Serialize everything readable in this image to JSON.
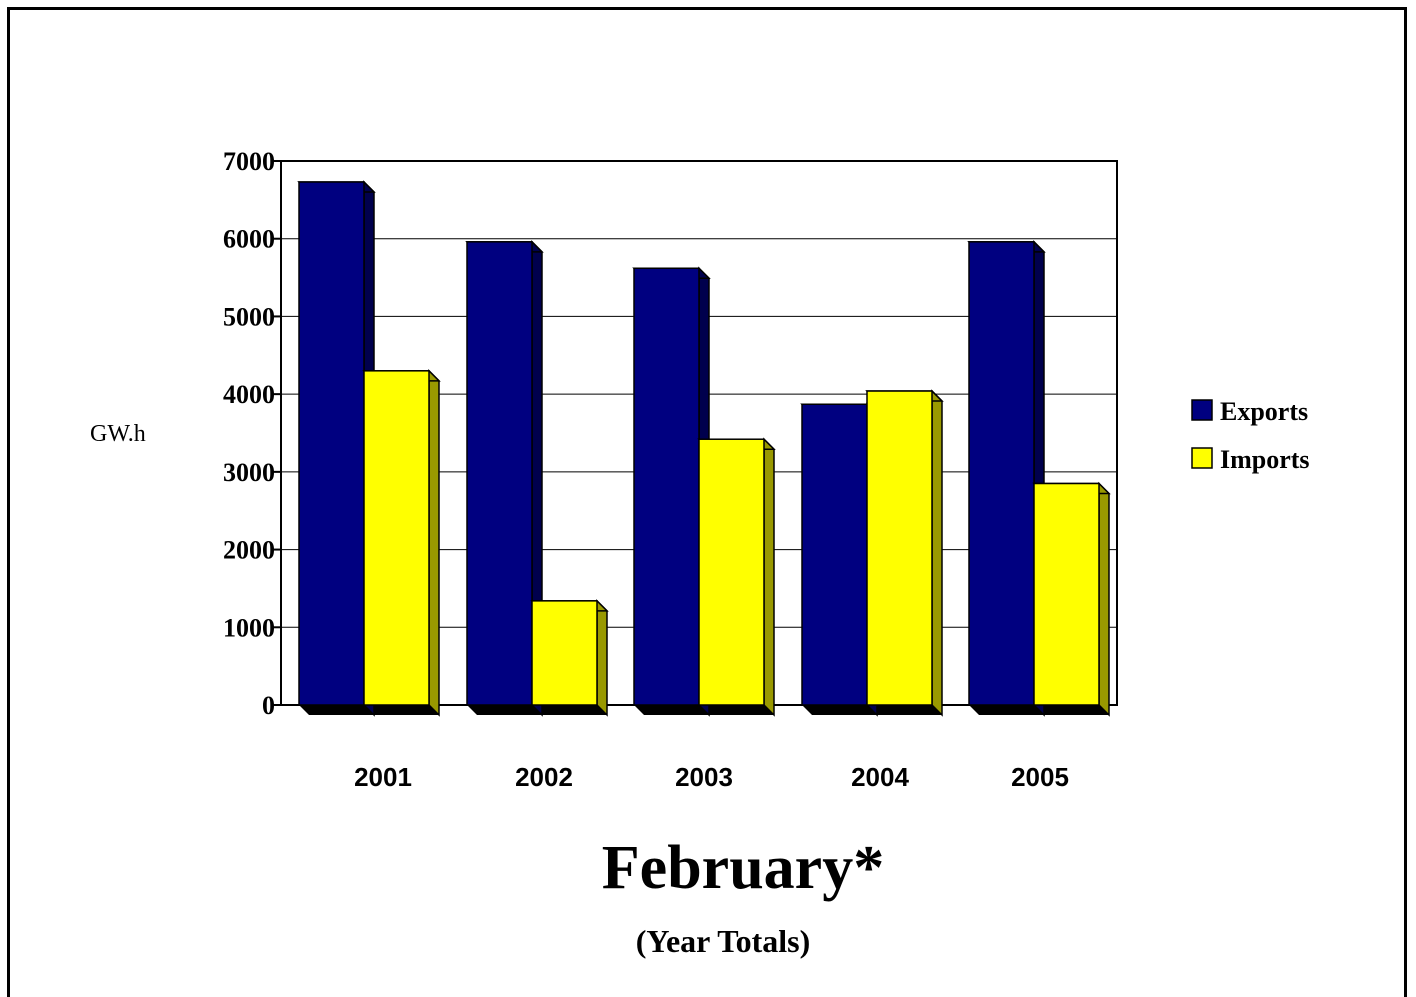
{
  "chart_data": {
    "type": "bar",
    "title": "February*",
    "subtitle": "(Year Totals)",
    "xlabel": "",
    "ylabel": "GW.h",
    "categories": [
      "2001",
      "2002",
      "2003",
      "2004",
      "2005"
    ],
    "series": [
      {
        "name": "Exports",
        "color": "#000080",
        "values": [
          6730,
          5960,
          5620,
          3870,
          5960
        ]
      },
      {
        "name": "Imports",
        "color": "#FFFF00",
        "values": [
          4300,
          1340,
          3420,
          4040,
          2850
        ]
      }
    ],
    "ylim": [
      0,
      7000
    ],
    "yticks": [
      0,
      1000,
      2000,
      3000,
      4000,
      5000,
      6000,
      7000
    ],
    "grid": true,
    "legend": "right"
  }
}
